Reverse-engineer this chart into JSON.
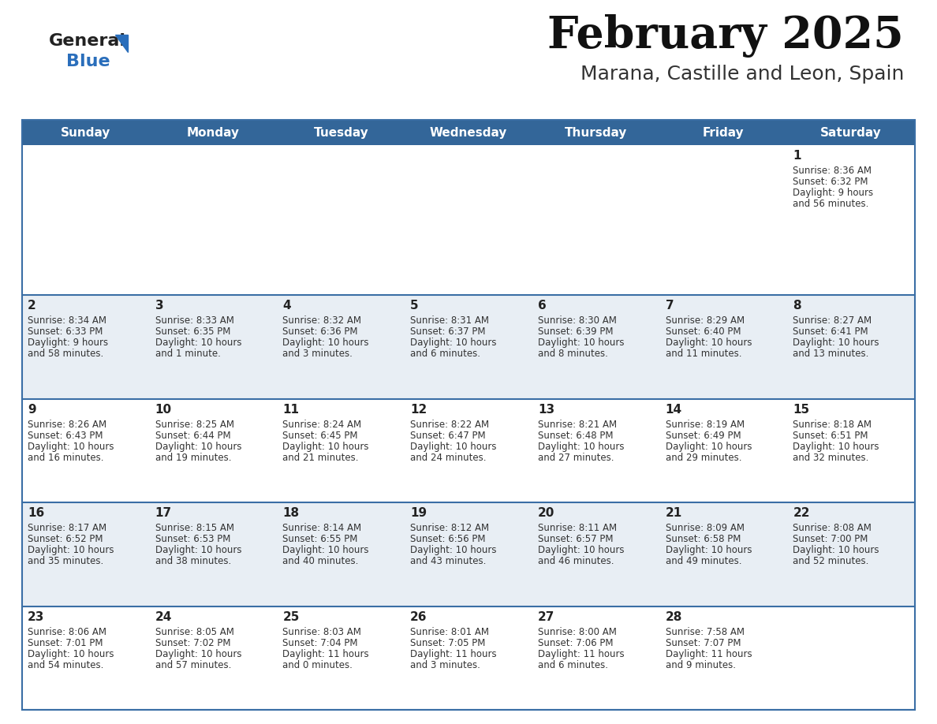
{
  "title": "February 2025",
  "subtitle": "Marana, Castille and Leon, Spain",
  "header_bg": "#336699",
  "header_text": "#ffffff",
  "weekdays": [
    "Sunday",
    "Monday",
    "Tuesday",
    "Wednesday",
    "Thursday",
    "Friday",
    "Saturday"
  ],
  "row_bg": [
    "#ffffff",
    "#e8eef4",
    "#ffffff",
    "#e8eef4",
    "#ffffff"
  ],
  "cell_border_color": "#3a6ea5",
  "day_number_color": "#222222",
  "info_text_color": "#333333",
  "logo_general_color": "#222222",
  "logo_blue_color": "#2a6ebb",
  "logo_triangle_color": "#2a6ebb",
  "calendar_data": [
    [
      null,
      null,
      null,
      null,
      null,
      null,
      {
        "day": "1",
        "sunrise": "8:36 AM",
        "sunset": "6:32 PM",
        "daylight": "9 hours and 56 minutes."
      }
    ],
    [
      {
        "day": "2",
        "sunrise": "8:34 AM",
        "sunset": "6:33 PM",
        "daylight": "9 hours and 58 minutes."
      },
      {
        "day": "3",
        "sunrise": "8:33 AM",
        "sunset": "6:35 PM",
        "daylight": "10 hours and 1 minute."
      },
      {
        "day": "4",
        "sunrise": "8:32 AM",
        "sunset": "6:36 PM",
        "daylight": "10 hours and 3 minutes."
      },
      {
        "day": "5",
        "sunrise": "8:31 AM",
        "sunset": "6:37 PM",
        "daylight": "10 hours and 6 minutes."
      },
      {
        "day": "6",
        "sunrise": "8:30 AM",
        "sunset": "6:39 PM",
        "daylight": "10 hours and 8 minutes."
      },
      {
        "day": "7",
        "sunrise": "8:29 AM",
        "sunset": "6:40 PM",
        "daylight": "10 hours and 11 minutes."
      },
      {
        "day": "8",
        "sunrise": "8:27 AM",
        "sunset": "6:41 PM",
        "daylight": "10 hours and 13 minutes."
      }
    ],
    [
      {
        "day": "9",
        "sunrise": "8:26 AM",
        "sunset": "6:43 PM",
        "daylight": "10 hours and 16 minutes."
      },
      {
        "day": "10",
        "sunrise": "8:25 AM",
        "sunset": "6:44 PM",
        "daylight": "10 hours and 19 minutes."
      },
      {
        "day": "11",
        "sunrise": "8:24 AM",
        "sunset": "6:45 PM",
        "daylight": "10 hours and 21 minutes."
      },
      {
        "day": "12",
        "sunrise": "8:22 AM",
        "sunset": "6:47 PM",
        "daylight": "10 hours and 24 minutes."
      },
      {
        "day": "13",
        "sunrise": "8:21 AM",
        "sunset": "6:48 PM",
        "daylight": "10 hours and 27 minutes."
      },
      {
        "day": "14",
        "sunrise": "8:19 AM",
        "sunset": "6:49 PM",
        "daylight": "10 hours and 29 minutes."
      },
      {
        "day": "15",
        "sunrise": "8:18 AM",
        "sunset": "6:51 PM",
        "daylight": "10 hours and 32 minutes."
      }
    ],
    [
      {
        "day": "16",
        "sunrise": "8:17 AM",
        "sunset": "6:52 PM",
        "daylight": "10 hours and 35 minutes."
      },
      {
        "day": "17",
        "sunrise": "8:15 AM",
        "sunset": "6:53 PM",
        "daylight": "10 hours and 38 minutes."
      },
      {
        "day": "18",
        "sunrise": "8:14 AM",
        "sunset": "6:55 PM",
        "daylight": "10 hours and 40 minutes."
      },
      {
        "day": "19",
        "sunrise": "8:12 AM",
        "sunset": "6:56 PM",
        "daylight": "10 hours and 43 minutes."
      },
      {
        "day": "20",
        "sunrise": "8:11 AM",
        "sunset": "6:57 PM",
        "daylight": "10 hours and 46 minutes."
      },
      {
        "day": "21",
        "sunrise": "8:09 AM",
        "sunset": "6:58 PM",
        "daylight": "10 hours and 49 minutes."
      },
      {
        "day": "22",
        "sunrise": "8:08 AM",
        "sunset": "7:00 PM",
        "daylight": "10 hours and 52 minutes."
      }
    ],
    [
      {
        "day": "23",
        "sunrise": "8:06 AM",
        "sunset": "7:01 PM",
        "daylight": "10 hours and 54 minutes."
      },
      {
        "day": "24",
        "sunrise": "8:05 AM",
        "sunset": "7:02 PM",
        "daylight": "10 hours and 57 minutes."
      },
      {
        "day": "25",
        "sunrise": "8:03 AM",
        "sunset": "7:04 PM",
        "daylight": "11 hours and 0 minutes."
      },
      {
        "day": "26",
        "sunrise": "8:01 AM",
        "sunset": "7:05 PM",
        "daylight": "11 hours and 3 minutes."
      },
      {
        "day": "27",
        "sunrise": "8:00 AM",
        "sunset": "7:06 PM",
        "daylight": "11 hours and 6 minutes."
      },
      {
        "day": "28",
        "sunrise": "7:58 AM",
        "sunset": "7:07 PM",
        "daylight": "11 hours and 9 minutes."
      },
      null
    ]
  ]
}
